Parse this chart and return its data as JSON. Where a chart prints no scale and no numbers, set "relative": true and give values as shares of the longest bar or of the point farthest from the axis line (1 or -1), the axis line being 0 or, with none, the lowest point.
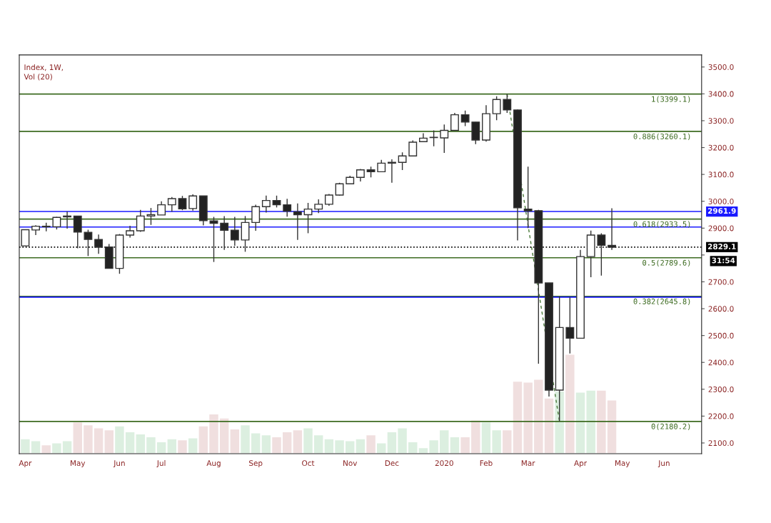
{
  "chart_data": [
    {
      "type": "candlestick",
      "title": "Index, 1W,",
      "x": [
        "2019-04-01",
        "2019-04-08",
        "2019-04-15",
        "2019-04-22",
        "2019-04-29",
        "2019-05-06",
        "2019-05-13",
        "2019-05-20",
        "2019-05-27",
        "2019-06-03",
        "2019-06-10",
        "2019-06-17",
        "2019-06-24",
        "2019-07-01",
        "2019-07-08",
        "2019-07-15",
        "2019-07-22",
        "2019-07-29",
        "2019-08-05",
        "2019-08-12",
        "2019-08-19",
        "2019-08-26",
        "2019-09-02",
        "2019-09-09",
        "2019-09-16",
        "2019-09-23",
        "2019-09-30",
        "2019-10-07",
        "2019-10-14",
        "2019-10-21",
        "2019-10-28",
        "2019-11-04",
        "2019-11-11",
        "2019-11-18",
        "2019-11-25",
        "2019-12-02",
        "2019-12-09",
        "2019-12-16",
        "2019-12-23",
        "2019-12-30",
        "2020-01-06",
        "2020-01-13",
        "2020-01-20",
        "2020-01-27",
        "2020-02-03",
        "2020-02-10",
        "2020-02-17",
        "2020-02-24",
        "2020-03-02",
        "2020-03-09",
        "2020-03-16",
        "2020-03-23",
        "2020-03-30",
        "2020-04-06",
        "2020-04-13",
        "2020-04-20",
        "2020-04-27"
      ],
      "ohlc": [
        [
          2834,
          2895,
          2833,
          2894
        ],
        [
          2893,
          2911,
          2874,
          2907
        ],
        [
          2907,
          2920,
          2888,
          2905
        ],
        [
          2905,
          2942,
          2895,
          2940
        ],
        [
          2942,
          2962,
          2898,
          2945
        ],
        [
          2945,
          2945,
          2825,
          2885
        ],
        [
          2884,
          2894,
          2796,
          2858
        ],
        [
          2858,
          2876,
          2804,
          2829
        ],
        [
          2830,
          2841,
          2750,
          2750
        ],
        [
          2750,
          2878,
          2730,
          2874
        ],
        [
          2874,
          2909,
          2865,
          2890
        ],
        [
          2890,
          2968,
          2886,
          2945
        ],
        [
          2945,
          2975,
          2912,
          2950
        ],
        [
          2949,
          3000,
          2949,
          2987
        ],
        [
          2987,
          3016,
          2961,
          3010
        ],
        [
          3010,
          3020,
          2967,
          2972
        ],
        [
          2973,
          3026,
          2965,
          3020
        ],
        [
          3020,
          3020,
          2910,
          2928
        ],
        [
          2927,
          2942,
          2774,
          2918
        ],
        [
          2918,
          2945,
          2819,
          2892
        ],
        [
          2892,
          2942,
          2834,
          2856
        ],
        [
          2856,
          2945,
          2812,
          2921
        ],
        [
          2921,
          2987,
          2890,
          2980
        ],
        [
          2980,
          3021,
          2958,
          3003
        ],
        [
          3003,
          3021,
          2977,
          2987
        ],
        [
          2987,
          3009,
          2943,
          2963
        ],
        [
          2961,
          2992,
          2856,
          2950
        ],
        [
          2950,
          2994,
          2881,
          2971
        ],
        [
          2971,
          3007,
          2956,
          2989
        ],
        [
          2989,
          3027,
          2983,
          3023
        ],
        [
          3023,
          3069,
          3021,
          3065
        ],
        [
          3065,
          3095,
          3063,
          3089
        ],
        [
          3089,
          3120,
          3074,
          3117
        ],
        [
          3117,
          3129,
          3089,
          3110
        ],
        [
          3110,
          3154,
          3110,
          3142
        ],
        [
          3145,
          3156,
          3069,
          3142
        ],
        [
          3145,
          3182,
          3116,
          3169
        ],
        [
          3169,
          3227,
          3169,
          3220
        ],
        [
          3222,
          3253,
          3220,
          3235
        ],
        [
          3237,
          3264,
          3205,
          3238
        ],
        [
          3236,
          3286,
          3180,
          3264
        ],
        [
          3264,
          3329,
          3264,
          3322
        ],
        [
          3322,
          3338,
          3280,
          3295
        ],
        [
          3295,
          3295,
          3213,
          3228
        ],
        [
          3228,
          3358,
          3222,
          3326
        ],
        [
          3326,
          3391,
          3302,
          3379
        ],
        [
          3379,
          3399.1,
          3329,
          3340
        ],
        [
          3340,
          3342,
          2854,
          2976
        ],
        [
          2971,
          3129,
          2900,
          2964
        ],
        [
          2965,
          2968,
          2395,
          2696
        ],
        [
          2696,
          2696,
          2273,
          2297
        ],
        [
          2297,
          2645,
          2180.2,
          2530
        ],
        [
          2530,
          2643,
          2433,
          2490
        ],
        [
          2490,
          2819,
          2490,
          2794
        ],
        [
          2794,
          2891,
          2717,
          2874
        ],
        [
          2874,
          2881,
          2723,
          2836
        ],
        [
          2836,
          2974,
          2819,
          2829.1
        ]
      ],
      "xlim": [
        "2019-03-28",
        "2020-06-26"
      ],
      "xticks": [
        {
          "value": "2019-04-01",
          "label": "Apr"
        },
        {
          "value": "2019-05-06",
          "label": "May"
        },
        {
          "value": "2019-06-03",
          "label": "Jun"
        },
        {
          "value": "2019-07-01",
          "label": "Jul"
        },
        {
          "value": "2019-08-05",
          "label": "Aug"
        },
        {
          "value": "2019-09-02",
          "label": "Sep"
        },
        {
          "value": "2019-10-07",
          "label": "Oct"
        },
        {
          "value": "2019-11-04",
          "label": "Nov"
        },
        {
          "value": "2019-12-02",
          "label": "Dec"
        },
        {
          "value": "2020-01-06",
          "label": "2020"
        },
        {
          "value": "2020-02-03",
          "label": "Feb"
        },
        {
          "value": "2020-03-02",
          "label": "Mar"
        },
        {
          "value": "2020-04-06",
          "label": "Apr"
        },
        {
          "value": "2020-05-04",
          "label": "May"
        },
        {
          "value": "2020-06-01",
          "label": "Jun"
        }
      ],
      "ylim": [
        2060,
        3545
      ],
      "yticks": [
        {
          "value": 2100,
          "label": "2100.0"
        },
        {
          "value": 2200,
          "label": "2200.0"
        },
        {
          "value": 2300,
          "label": "2300.0"
        },
        {
          "value": 2400,
          "label": "2400.0"
        },
        {
          "value": 2500,
          "label": "2500.0"
        },
        {
          "value": 2600,
          "label": "2600.0"
        },
        {
          "value": 2700,
          "label": "2700.0"
        },
        {
          "value": 2800,
          "label": null
        },
        {
          "value": 2900,
          "label": "2900.0"
        },
        {
          "value": 3000,
          "label": "3000.0"
        },
        {
          "value": 3100,
          "label": "3100.0"
        },
        {
          "value": 3200,
          "label": "3200.0"
        },
        {
          "value": 3300,
          "label": "3300.0"
        },
        {
          "value": 3400,
          "label": "3400.0"
        },
        {
          "value": 3500,
          "label": "3500.0"
        }
      ],
      "series": [
        {
          "type": "line",
          "x": [
            "2020-02-17",
            "2020-03-23"
          ],
          "values": [
            3399,
            2180
          ],
          "color": "#4a7a3a",
          "line_style": "dashed"
        }
      ],
      "ref_lines": [
        {
          "axis": "y",
          "value": 3399.1,
          "label": "1(3399.1)",
          "color": "#3d6b21",
          "line_style": "solid"
        },
        {
          "axis": "y",
          "value": 3260.1,
          "label": "0.886(3260.1)",
          "color": "#3d6b21",
          "line_style": "solid"
        },
        {
          "axis": "y",
          "value": 2961.9,
          "label": "2961.9",
          "color": "#1a1aff",
          "line_style": "solid"
        },
        {
          "axis": "y",
          "value": 2933.5,
          "label": "0.618(2933.5)",
          "color": "#3d6b21",
          "line_style": "solid"
        },
        {
          "axis": "y",
          "value": 2904,
          "color": "#1a1aff",
          "line_style": "solid"
        },
        {
          "axis": "y",
          "value": 2829.1,
          "label": "2829.1",
          "color": "#000000",
          "line_style": "dotted"
        },
        {
          "axis": "y",
          "value": 2789.6,
          "label": "0.5(2789.6)",
          "color": "#3d6b21",
          "line_style": "solid"
        },
        {
          "axis": "y",
          "value": 2645.8,
          "label": "0.382(2645.8)",
          "color": "#3d6b21",
          "line_style": "solid"
        },
        {
          "axis": "y",
          "value": 2643,
          "color": "#1a1aff",
          "line_style": "solid"
        },
        {
          "axis": "y",
          "value": 2180.2,
          "label": "0(2180.2)",
          "color": "#3d6b21",
          "line_style": "solid"
        }
      ],
      "annotations": [
        "31:54"
      ]
    },
    {
      "type": "bar",
      "title": "Vol (20)",
      "relative": true,
      "tick_labels": false,
      "xlim": [
        "2019-03-28",
        "2020-06-26"
      ],
      "x": [
        "2019-04-01",
        "2019-04-08",
        "2019-04-15",
        "2019-04-22",
        "2019-04-29",
        "2019-05-06",
        "2019-05-13",
        "2019-05-20",
        "2019-05-27",
        "2019-06-03",
        "2019-06-10",
        "2019-06-17",
        "2019-06-24",
        "2019-07-01",
        "2019-07-08",
        "2019-07-15",
        "2019-07-22",
        "2019-07-29",
        "2019-08-05",
        "2019-08-12",
        "2019-08-19",
        "2019-08-26",
        "2019-09-02",
        "2019-09-09",
        "2019-09-16",
        "2019-09-23",
        "2019-09-30",
        "2019-10-07",
        "2019-10-14",
        "2019-10-21",
        "2019-10-28",
        "2019-11-04",
        "2019-11-11",
        "2019-11-18",
        "2019-11-25",
        "2019-12-02",
        "2019-12-09",
        "2019-12-16",
        "2019-12-23",
        "2019-12-30",
        "2020-01-06",
        "2020-01-13",
        "2020-01-20",
        "2020-01-27",
        "2020-02-03",
        "2020-02-10",
        "2020-02-17",
        "2020-02-24",
        "2020-03-02",
        "2020-03-09",
        "2020-03-16",
        "2020-03-23",
        "2020-03-30",
        "2020-04-06",
        "2020-04-13",
        "2020-04-20",
        "2020-04-27"
      ],
      "values": [
        0.15,
        0.13,
        0.09,
        0.11,
        0.13,
        0.32,
        0.29,
        0.26,
        0.24,
        0.28,
        0.22,
        0.2,
        0.17,
        0.12,
        0.15,
        0.14,
        0.16,
        0.28,
        0.4,
        0.36,
        0.25,
        0.29,
        0.21,
        0.19,
        0.17,
        0.22,
        0.24,
        0.26,
        0.19,
        0.15,
        0.14,
        0.13,
        0.15,
        0.19,
        0.11,
        0.22,
        0.26,
        0.12,
        0.06,
        0.14,
        0.24,
        0.17,
        0.17,
        0.34,
        0.32,
        0.24,
        0.24,
        0.73,
        0.72,
        0.75,
        0.56,
        0.63,
        1,
        0.62,
        0.64,
        0.64,
        0.54
      ],
      "colors": [
        "#dcefe0",
        "#dcefe0",
        "#f0dfdf",
        "#dcefe0",
        "#dcefe0",
        "#f0dfdf",
        "#f0dfdf",
        "#f0dfdf",
        "#f0dfdf",
        "#dcefe0",
        "#dcefe0",
        "#dcefe0",
        "#dcefe0",
        "#dcefe0",
        "#dcefe0",
        "#f0dfdf",
        "#dcefe0",
        "#f0dfdf",
        "#f0dfdf",
        "#f0dfdf",
        "#f0dfdf",
        "#dcefe0",
        "#dcefe0",
        "#dcefe0",
        "#f0dfdf",
        "#f0dfdf",
        "#f0dfdf",
        "#dcefe0",
        "#dcefe0",
        "#dcefe0",
        "#dcefe0",
        "#dcefe0",
        "#dcefe0",
        "#f0dfdf",
        "#dcefe0",
        "#dcefe0",
        "#dcefe0",
        "#dcefe0",
        "#dcefe0",
        "#dcefe0",
        "#dcefe0",
        "#dcefe0",
        "#f0dfdf",
        "#f0dfdf",
        "#dcefe0",
        "#dcefe0",
        "#f0dfdf",
        "#f0dfdf",
        "#f0dfdf",
        "#f0dfdf",
        "#f0dfdf",
        "#dcefe0",
        "#f0dfdf",
        "#dcefe0",
        "#dcefe0",
        "#f0dfdf",
        "#f0dfdf"
      ]
    }
  ]
}
